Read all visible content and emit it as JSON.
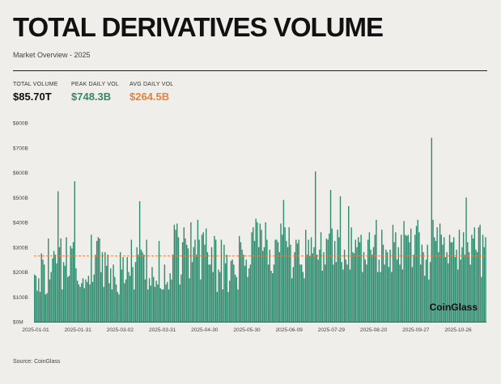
{
  "header": {
    "title": "TOTAL DERIVATIVES VOLUME",
    "subtitle": "Market Overview - 2025"
  },
  "stats": {
    "total": {
      "label": "TOTAL VOLUME",
      "value": "$85.70T"
    },
    "peak": {
      "label": "PEAK DAILY VOL",
      "value": "$748.3B"
    },
    "avg": {
      "label": "AVG DAILY VOL",
      "value": "$264.5B"
    }
  },
  "footer": {
    "source": "Source: CoinGlass",
    "watermark": "CoinGlass"
  },
  "colors": {
    "bar": "#2e8b6e",
    "avg_line": "#e8823a",
    "peak_text": "#2e8b6e",
    "avg_text": "#e8823a"
  },
  "chart_data": {
    "type": "bar",
    "title": "TOTAL DERIVATIVES VOLUME",
    "xlabel": "",
    "ylabel": "",
    "ylim": [
      0,
      800
    ],
    "yticks": [
      "$0M",
      "$100B",
      "$200B",
      "$300B",
      "$400B",
      "$500B",
      "$600B",
      "$700B",
      "$800B"
    ],
    "xtick_labels": [
      "2025-01-01",
      "2025-01-31",
      "2025-03-02",
      "2025-03-31",
      "2025-04-30",
      "2025-05-30",
      "2025-06-09",
      "2025-07-29",
      "2025-08-20",
      "2025-09-27",
      "2025-10-26"
    ],
    "grid": false,
    "unit": "B",
    "avg_line": 264.5,
    "peak": 748.3,
    "series": [
      {
        "values": [
          190,
          185,
          125,
          175,
          120,
          275,
          250,
          230,
          110,
          115,
          335,
          170,
          200,
          255,
          285,
          270,
          235,
          525,
          300,
          335,
          130,
          240,
          225,
          340,
          180,
          185,
          305,
          295,
          320,
          565,
          215,
          165,
          150,
          140,
          155,
          175,
          135,
          170,
          160,
          185,
          150,
          350,
          160,
          190,
          270,
          325,
          340,
          335,
          200,
          280,
          140,
          280,
          225,
          270,
          155,
          215,
          130,
          230,
          180,
          150,
          120,
          110,
          280,
          210,
          260,
          155,
          170,
          260,
          200,
          185,
          330,
          220,
          130,
          240,
          300,
          270,
          485,
          290,
          280,
          270,
          170,
          330,
          130,
          175,
          145,
          220,
          180,
          140,
          165,
          150,
          325,
          135,
          130,
          130,
          230,
          150,
          160,
          130,
          195,
          170,
          270,
          390,
          370,
          395,
          340,
          150,
          190,
          320,
          380,
          335,
          310,
          295,
          175,
          400,
          240,
          300,
          330,
          270,
          410,
          330,
          170,
          350,
          360,
          310,
          375,
          280,
          230,
          230,
          300,
          200,
          345,
          330,
          120,
          210,
          200,
          330,
          130,
          310,
          235,
          270,
          120,
          165,
          245,
          250,
          230,
          190,
          180,
          130,
          345,
          320,
          290,
          270,
          225,
          250,
          180,
          215,
          230,
          360,
          380,
          325,
          415,
          400,
          300,
          395,
          370,
          285,
          300,
          400,
          330,
          230,
          290,
          205,
          195,
          230,
          330,
          330,
          320,
          280,
          395,
          350,
          490,
          380,
          325,
          300,
          380,
          310,
          175,
          220,
          280,
          330,
          315,
          330,
          230,
          230,
          200,
          175,
          370,
          270,
          330,
          265,
          340,
          275,
          300,
          605,
          270,
          250,
          290,
          360,
          205,
          280,
          230,
          335,
          330,
          355,
          530,
          375,
          230,
          325,
          240,
          370,
          340,
          505,
          240,
          210,
          290,
          250,
          230,
          465,
          210,
          380,
          280,
          275,
          330,
          300,
          340,
          320,
          350,
          200,
          280,
          250,
          230,
          330,
          360,
          290,
          270,
          300,
          350,
          410,
          200,
          250,
          200,
          370,
          310,
          230,
          290,
          280,
          220,
          290,
          200,
          390,
          320,
          360,
          250,
          300,
          230,
          350,
          210,
          405,
          350,
          345,
          350,
          320,
          375,
          220,
          270,
          350,
          385,
          410,
          360,
          230,
          310,
          280,
          185,
          250,
          310,
          170,
          240,
          740,
          410,
          340,
          325,
          380,
          280,
          395,
          350,
          310,
          340,
          260,
          280,
          235,
          350,
          320,
          320,
          340,
          260,
          290,
          210,
          370,
          250,
          300,
          360,
          270,
          500,
          320,
          280,
          230,
          350,
          335,
          380,
          290,
          280,
          380,
          390,
          180,
          350,
          300,
          340
        ]
      }
    ]
  }
}
